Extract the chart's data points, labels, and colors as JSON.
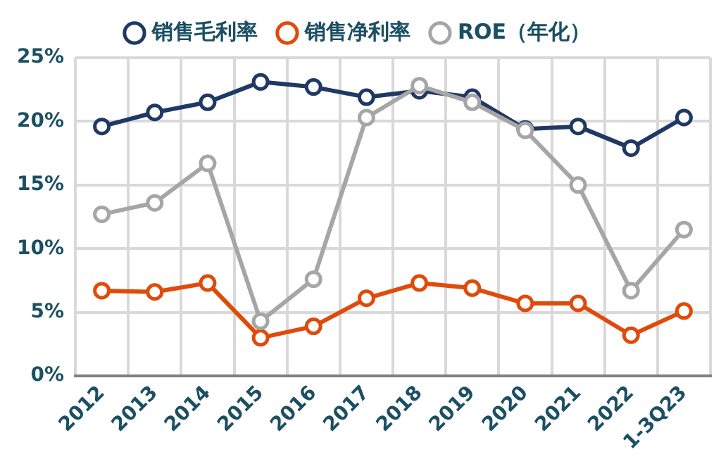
{
  "chart_data": {
    "type": "line",
    "categories": [
      "2012",
      "2013",
      "2014",
      "2015",
      "2016",
      "2017",
      "2018",
      "2019",
      "2020",
      "2021",
      "2022",
      "1-3Q23"
    ],
    "series": [
      {
        "name": "销售毛利率",
        "color": "#1f3864",
        "values": [
          19.6,
          20.7,
          21.5,
          23.1,
          22.7,
          21.9,
          22.4,
          21.9,
          19.4,
          19.6,
          17.9,
          20.3
        ]
      },
      {
        "name": "销售净利率",
        "color": "#e04a0a",
        "values": [
          6.7,
          6.6,
          7.3,
          3.0,
          3.9,
          6.1,
          7.3,
          6.9,
          5.7,
          5.7,
          3.2,
          5.1
        ]
      },
      {
        "name": "ROE（年化）",
        "color": "#a6a6a6",
        "values": [
          12.7,
          13.6,
          16.7,
          4.3,
          7.6,
          20.3,
          22.8,
          21.5,
          19.3,
          15.0,
          6.7,
          11.5
        ]
      }
    ],
    "ylim": [
      0,
      25
    ],
    "yticks": [
      {
        "value": 0,
        "label": "0%"
      },
      {
        "value": 5,
        "label": "5%"
      },
      {
        "value": 10,
        "label": "10%"
      },
      {
        "value": 15,
        "label": "15%"
      },
      {
        "value": 20,
        "label": "20%"
      },
      {
        "value": 25,
        "label": "25%"
      }
    ],
    "grid": true,
    "legend": "top",
    "marker": "circle",
    "line_style": "solid"
  }
}
